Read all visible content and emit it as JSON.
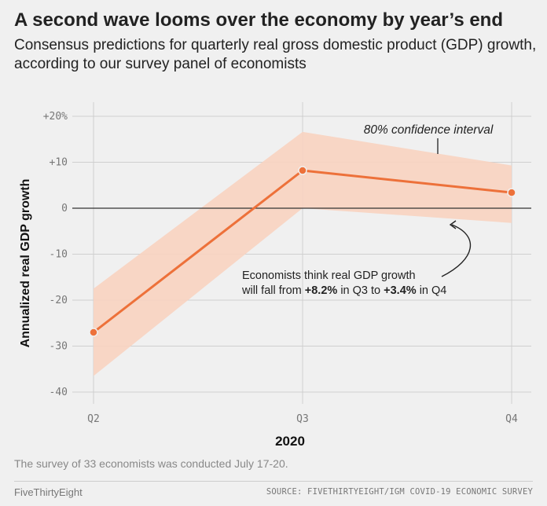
{
  "header": {
    "title": "A second wave looms over the economy by year’s end",
    "subtitle": "Consensus predictions for quarterly real gross domestic product (GDP) growth, according to our survey panel of economists"
  },
  "chart_data": {
    "type": "line",
    "xlabel": "2020",
    "ylabel": "Annualized real GDP growth",
    "categories": [
      "Q2",
      "Q3",
      "Q4"
    ],
    "series": [
      {
        "values": [
          -27.0,
          8.2,
          3.4
        ],
        "color": "#ed713a"
      }
    ],
    "confidence_interval": {
      "label": "80% confidence interval",
      "lower": [
        -36.5,
        0.0,
        -3.2
      ],
      "upper": [
        -17.5,
        16.6,
        9.3
      ],
      "color": "#f8d3c0"
    },
    "ylim": [
      -40,
      20
    ],
    "y_ticks": [
      -40,
      -30,
      -20,
      -10,
      0,
      10,
      20
    ],
    "y_tick_labels": [
      "-40",
      "-30",
      "-20",
      "-10",
      "0",
      "+10",
      "+20%"
    ],
    "grid": true,
    "annotation": {
      "line1": "Economists think real GDP growth",
      "line2_parts": [
        {
          "text": "will fall from ",
          "bold": false
        },
        {
          "text": "+8.2%",
          "bold": true
        },
        {
          "text": " in Q3 to ",
          "bold": false
        },
        {
          "text": "+3.4%",
          "bold": true
        },
        {
          "text": " in Q4",
          "bold": false
        }
      ]
    }
  },
  "footer": {
    "note": "The survey of 33 economists was conducted July 17-20.",
    "brand": "FiveThirtyEight",
    "source": "SOURCE: FIVETHIRTYEIGHT/IGM COVID-19 ECONOMIC SURVEY"
  }
}
